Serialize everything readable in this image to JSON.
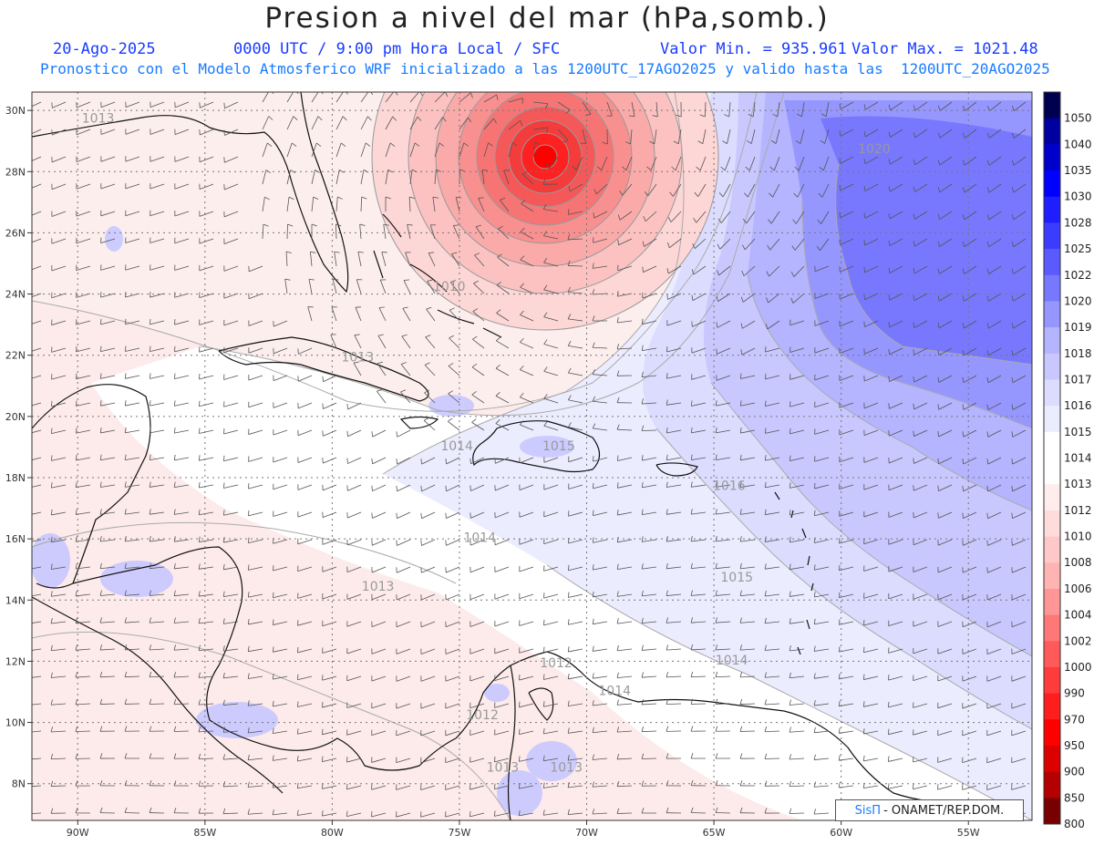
{
  "title": "Presion a nivel del mar (hPa,somb.)",
  "header": {
    "date": "20-Ago-2025",
    "time_info": "0000 UTC / 9:00 pm Hora Local / SFC",
    "min_value": "Valor Min. = 935.961",
    "max_value": "Valor Max. = 1021.48",
    "forecast_info": "Pronostico con el Modelo Atmosferico WRF inicializado a las 1200UTC_17AGO2025 y valido hasta las  1200UTC_20AGO2025"
  },
  "map": {
    "lat_labels": [
      "30N",
      "28N",
      "26N",
      "24N",
      "22N",
      "20N",
      "18N",
      "16N",
      "14N",
      "12N",
      "10N",
      "8N"
    ],
    "lon_labels": [
      "90W",
      "85W",
      "80W",
      "75W",
      "70W",
      "65W",
      "60W",
      "55W"
    ],
    "contour_labels": [
      {
        "text": "1013",
        "lon": -89.2,
        "lat": 29.6
      },
      {
        "text": "1010",
        "lon": -75.4,
        "lat": 24.1
      },
      {
        "text": "1013",
        "lon": -79.0,
        "lat": 21.8
      },
      {
        "text": "1020",
        "lon": -58.7,
        "lat": 28.6
      },
      {
        "text": "1014",
        "lon": -75.1,
        "lat": 18.9
      },
      {
        "text": "1015",
        "lon": -71.1,
        "lat": 18.9
      },
      {
        "text": "1016",
        "lon": -64.4,
        "lat": 17.6
      },
      {
        "text": "1014",
        "lon": -74.2,
        "lat": 15.9
      },
      {
        "text": "1013",
        "lon": -78.2,
        "lat": 14.3
      },
      {
        "text": "1015",
        "lon": -64.1,
        "lat": 14.6
      },
      {
        "text": "1014",
        "lon": -64.3,
        "lat": 11.9
      },
      {
        "text": "1012",
        "lon": -71.2,
        "lat": 11.8
      },
      {
        "text": "1014",
        "lon": -68.9,
        "lat": 10.9
      },
      {
        "text": "1012",
        "lon": -74.1,
        "lat": 10.1
      },
      {
        "text": "1013",
        "lon": -73.3,
        "lat": 8.4
      },
      {
        "text": "1013",
        "lon": -70.8,
        "lat": 8.4
      }
    ],
    "pressure_min_center": {
      "lon": -71.6,
      "lat": 28.6
    }
  },
  "colorbar": {
    "labels": [
      "1050",
      "1040",
      "1035",
      "1030",
      "1028",
      "1025",
      "1022",
      "1020",
      "1019",
      "1018",
      "1017",
      "1016",
      "1015",
      "1014",
      "1013",
      "1012",
      "1010",
      "1008",
      "1006",
      "1004",
      "1002",
      "1000",
      "990",
      "970",
      "950",
      "900",
      "850",
      "800"
    ],
    "colors": [
      "#000050",
      "#0000a0",
      "#0000cd",
      "#0000ff",
      "#1e1eff",
      "#3c3cff",
      "#5a5aff",
      "#7878ff",
      "#9696ff",
      "#b4b4ff",
      "#c8c8ff",
      "#dcdcff",
      "#ececff",
      "#ffffff",
      "#ffffff",
      "#ffecec",
      "#ffdcdc",
      "#ffc8c8",
      "#ffb4b4",
      "#ff9696",
      "#ff7878",
      "#ff5a5a",
      "#ff3c3c",
      "#ff1e1e",
      "#ff0000",
      "#dc0000",
      "#b40000",
      "#780000"
    ]
  },
  "credit": {
    "brand": "SisΠ",
    "text": "- ONAMET/REP.DOM."
  }
}
